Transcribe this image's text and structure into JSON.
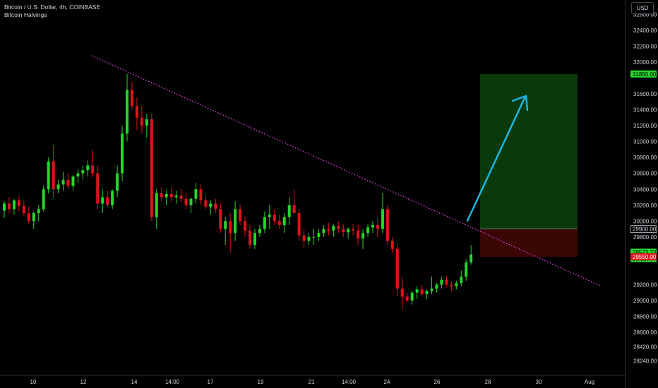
{
  "legend": {
    "symbol": "Bitcoin / U.S. Dollar, 4h, COINBASE",
    "indicator": "Bitcoin Halvings"
  },
  "currency": "USD",
  "colors": {
    "up": "#26d62a",
    "down": "#e0121b",
    "trendline": "#e040e0",
    "arrow": "#1fb6e0",
    "target_zone": "#0a3a0c",
    "stop_zone": "#3a0606"
  },
  "chart_data": {
    "type": "candlestick",
    "ylim": [
      28060,
      32780
    ],
    "y_ticks": [
      "32600.00",
      "32400.00",
      "32200.00",
      "32000.00",
      "31600.00",
      "31400.00",
      "31200.00",
      "31000.00",
      "30800.00",
      "30600.00",
      "30400.00",
      "30200.00",
      "30000.00",
      "29800.00",
      "29200.00",
      "29000.00",
      "28800.00",
      "28600.00",
      "28420.00",
      "28240.00"
    ],
    "x_ticks": [
      "10",
      "12",
      "14",
      "14:00",
      "17",
      "19",
      "21",
      "14:00",
      "24",
      "26",
      "28",
      "30",
      "Aug"
    ],
    "price_tags": [
      {
        "label": "31850.00",
        "value": 31850,
        "style": "green"
      },
      {
        "label": "29900.00",
        "value": 29900,
        "style": "gray"
      },
      {
        "label": "29573.23",
        "value": 29573.23,
        "style": "green-last"
      },
      {
        "label": "03:15:47",
        "value": 29573.23,
        "style": "countdown"
      },
      {
        "label": "29550.00",
        "value": 29550,
        "style": "red"
      }
    ],
    "position": {
      "entry": 29900,
      "target": 31850,
      "stop": 29550
    },
    "trendline": {
      "from": [
        "start",
        32080
      ],
      "to": [
        "end",
        29180
      ]
    },
    "candles": [
      [
        30130,
        30250,
        30040,
        30220
      ],
      [
        30220,
        30300,
        30100,
        30150
      ],
      [
        30150,
        30280,
        30080,
        30260
      ],
      [
        30260,
        30320,
        30120,
        30190
      ],
      [
        30190,
        30260,
        30060,
        30100
      ],
      [
        30100,
        30180,
        29960,
        30000
      ],
      [
        30000,
        30120,
        29900,
        30100
      ],
      [
        30100,
        30200,
        30000,
        30150
      ],
      [
        30150,
        30450,
        30120,
        30400
      ],
      [
        30400,
        30800,
        30350,
        30750
      ],
      [
        30750,
        30950,
        30300,
        30400
      ],
      [
        30400,
        30520,
        30350,
        30460
      ],
      [
        30460,
        30620,
        30380,
        30520
      ],
      [
        30520,
        30600,
        30400,
        30440
      ],
      [
        30440,
        30580,
        30380,
        30560
      ],
      [
        30560,
        30650,
        30480,
        30600
      ],
      [
        30600,
        30700,
        30520,
        30640
      ],
      [
        30640,
        30760,
        30560,
        30700
      ],
      [
        30700,
        30900,
        30550,
        30600
      ],
      [
        30600,
        30700,
        30150,
        30220
      ],
      [
        30220,
        30400,
        30100,
        30300
      ],
      [
        30300,
        30380,
        30180,
        30200
      ],
      [
        30200,
        30400,
        30150,
        30380
      ],
      [
        30380,
        30700,
        30300,
        30600
      ],
      [
        30600,
        31200,
        30500,
        31100
      ],
      [
        31100,
        31850,
        31000,
        31650
      ],
      [
        31650,
        31750,
        31400,
        31450
      ],
      [
        31450,
        31550,
        31150,
        31300
      ],
      [
        31300,
        31450,
        31100,
        31200
      ],
      [
        31200,
        31350,
        31050,
        31280
      ],
      [
        31280,
        31350,
        30000,
        30050
      ],
      [
        30050,
        30400,
        29900,
        30350
      ],
      [
        30350,
        30420,
        30250,
        30300
      ],
      [
        30300,
        30380,
        30200,
        30340
      ],
      [
        30340,
        30420,
        30250,
        30300
      ],
      [
        30300,
        30380,
        30220,
        30320
      ],
      [
        30320,
        30400,
        30240,
        30280
      ],
      [
        30280,
        30360,
        30150,
        30200
      ],
      [
        30200,
        30300,
        30100,
        30280
      ],
      [
        30280,
        30480,
        30220,
        30400
      ],
      [
        30400,
        30460,
        30200,
        30260
      ],
      [
        30260,
        30320,
        30150,
        30180
      ],
      [
        30180,
        30260,
        30080,
        30220
      ],
      [
        30220,
        30280,
        30100,
        30150
      ],
      [
        30150,
        30220,
        29850,
        29900
      ],
      [
        29900,
        30050,
        29700,
        30000
      ],
      [
        30000,
        30100,
        29600,
        29850
      ],
      [
        29850,
        30250,
        29750,
        30150
      ],
      [
        30150,
        30200,
        29950,
        30000
      ],
      [
        30000,
        30060,
        29800,
        29880
      ],
      [
        29880,
        29950,
        29650,
        29700
      ],
      [
        29700,
        29900,
        29650,
        29850
      ],
      [
        29850,
        29950,
        29800,
        29900
      ],
      [
        29900,
        30120,
        29850,
        30050
      ],
      [
        30050,
        30200,
        29900,
        30080
      ],
      [
        30080,
        30150,
        29950,
        30000
      ],
      [
        30000,
        30080,
        29900,
        29950
      ],
      [
        29950,
        30100,
        29850,
        30050
      ],
      [
        30050,
        30300,
        29950,
        30200
      ],
      [
        30200,
        30400,
        30100,
        30100
      ],
      [
        30100,
        30150,
        29750,
        29820
      ],
      [
        29820,
        29900,
        29650,
        29750
      ],
      [
        29750,
        29850,
        29700,
        29800
      ],
      [
        29800,
        29900,
        29700,
        29800
      ],
      [
        29800,
        29900,
        29750,
        29850
      ],
      [
        29850,
        29950,
        29800,
        29900
      ],
      [
        29900,
        29980,
        29820,
        29880
      ],
      [
        29880,
        29960,
        29800,
        29940
      ],
      [
        29940,
        30000,
        29850,
        29900
      ],
      [
        29900,
        29960,
        29800,
        29860
      ],
      [
        29860,
        29920,
        29780,
        29900
      ],
      [
        29900,
        29960,
        29820,
        29880
      ],
      [
        29880,
        29950,
        29700,
        29780
      ],
      [
        29780,
        29900,
        29650,
        29850
      ],
      [
        29850,
        29960,
        29800,
        29920
      ],
      [
        29920,
        30000,
        29850,
        29950
      ],
      [
        29950,
        30050,
        29800,
        29900
      ],
      [
        29900,
        30350,
        29850,
        30150
      ],
      [
        30150,
        30200,
        29700,
        29750
      ],
      [
        29750,
        29800,
        29600,
        29650
      ],
      [
        29650,
        29720,
        29050,
        29150
      ],
      [
        29150,
        29300,
        28880,
        29050
      ],
      [
        29050,
        29100,
        28980,
        29000
      ],
      [
        29000,
        29120,
        28950,
        29100
      ],
      [
        29100,
        29180,
        29020,
        29140
      ],
      [
        29140,
        29200,
        29060,
        29080
      ],
      [
        29080,
        29140,
        29020,
        29120
      ],
      [
        29120,
        29300,
        29080,
        29150
      ],
      [
        29150,
        29220,
        29100,
        29200
      ],
      [
        29200,
        29300,
        29150,
        29260
      ],
      [
        29260,
        29310,
        29180,
        29200
      ],
      [
        29200,
        29240,
        29120,
        29180
      ],
      [
        29180,
        29250,
        29140,
        29220
      ],
      [
        29220,
        29380,
        29180,
        29300
      ],
      [
        29300,
        29520,
        29250,
        29480
      ],
      [
        29480,
        29700,
        29450,
        29580
      ]
    ]
  }
}
